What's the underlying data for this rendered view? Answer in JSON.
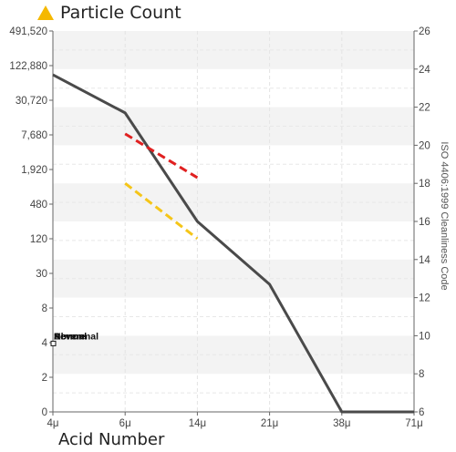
{
  "chart_data": {
    "type": "line",
    "title": "Particle Count",
    "x_axis_title": "Acid Number",
    "x_categories": [
      "4μ",
      "6μ",
      "14μ",
      "21μ",
      "38μ",
      "71μ"
    ],
    "y_left": {
      "ticks": [
        "0",
        "2",
        "4",
        "8",
        "30",
        "120",
        "480",
        "1,920",
        "7,680",
        "30,720",
        "122,880",
        "491,520"
      ]
    },
    "y_right": {
      "label": "ISO 4406:1999 Cleanliness Code",
      "ticks": [
        6,
        8,
        10,
        12,
        14,
        16,
        18,
        20,
        22,
        24,
        26
      ]
    },
    "series": [
      {
        "type": "line",
        "color": "#4a4a4a",
        "points": [
          {
            "x": "4μ",
            "code": 23.7
          },
          {
            "x": "6μ",
            "code": 21.7
          },
          {
            "x": "14μ",
            "code": 16.0
          },
          {
            "x": "21μ",
            "code": 12.7
          },
          {
            "x": "38μ",
            "code": 6.0
          },
          {
            "x": "71μ",
            "code": 6.0
          }
        ]
      },
      {
        "type": "dashed",
        "color": "#e02020",
        "points": [
          {
            "x": "6μ",
            "code": 20.6
          },
          {
            "x": "14μ",
            "code": 18.3
          }
        ]
      },
      {
        "type": "dashed",
        "color": "#f5c518",
        "points": [
          {
            "x": "6μ",
            "code": 18.0
          },
          {
            "x": "14μ",
            "code": 15.1
          }
        ]
      }
    ],
    "annotations": [
      "Abnormal",
      "Severe",
      "Normal"
    ],
    "grid": true,
    "legend_icon": "warning-triangle-icon",
    "icon_color": "#f5b800"
  }
}
